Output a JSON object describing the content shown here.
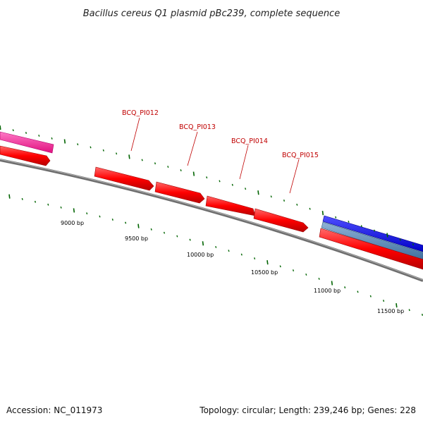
{
  "title": "Bacillus cereus Q1 plasmid pBc239, complete sequence",
  "footer": {
    "accession": "Accession: NC_011973",
    "summary": "Topology: circular; Length: 239,246 bp; Genes: 228"
  },
  "ruler_labels": [
    "9000 bp",
    "9500 bp",
    "10000 bp",
    "10500 bp",
    "11000 bp",
    "11500 bp"
  ],
  "gene_labels": [
    "BCQ_PI012",
    "BCQ_PI013",
    "BCQ_PI014",
    "BCQ_PI015"
  ],
  "colors": {
    "gene_red": "#ff0000",
    "gene_pink": "#ff1493",
    "gene_blue": "#0000ff",
    "gene_steel": "#4682b4",
    "backbone": "#808080",
    "tick": "#006400",
    "label_red": "#c00000"
  }
}
